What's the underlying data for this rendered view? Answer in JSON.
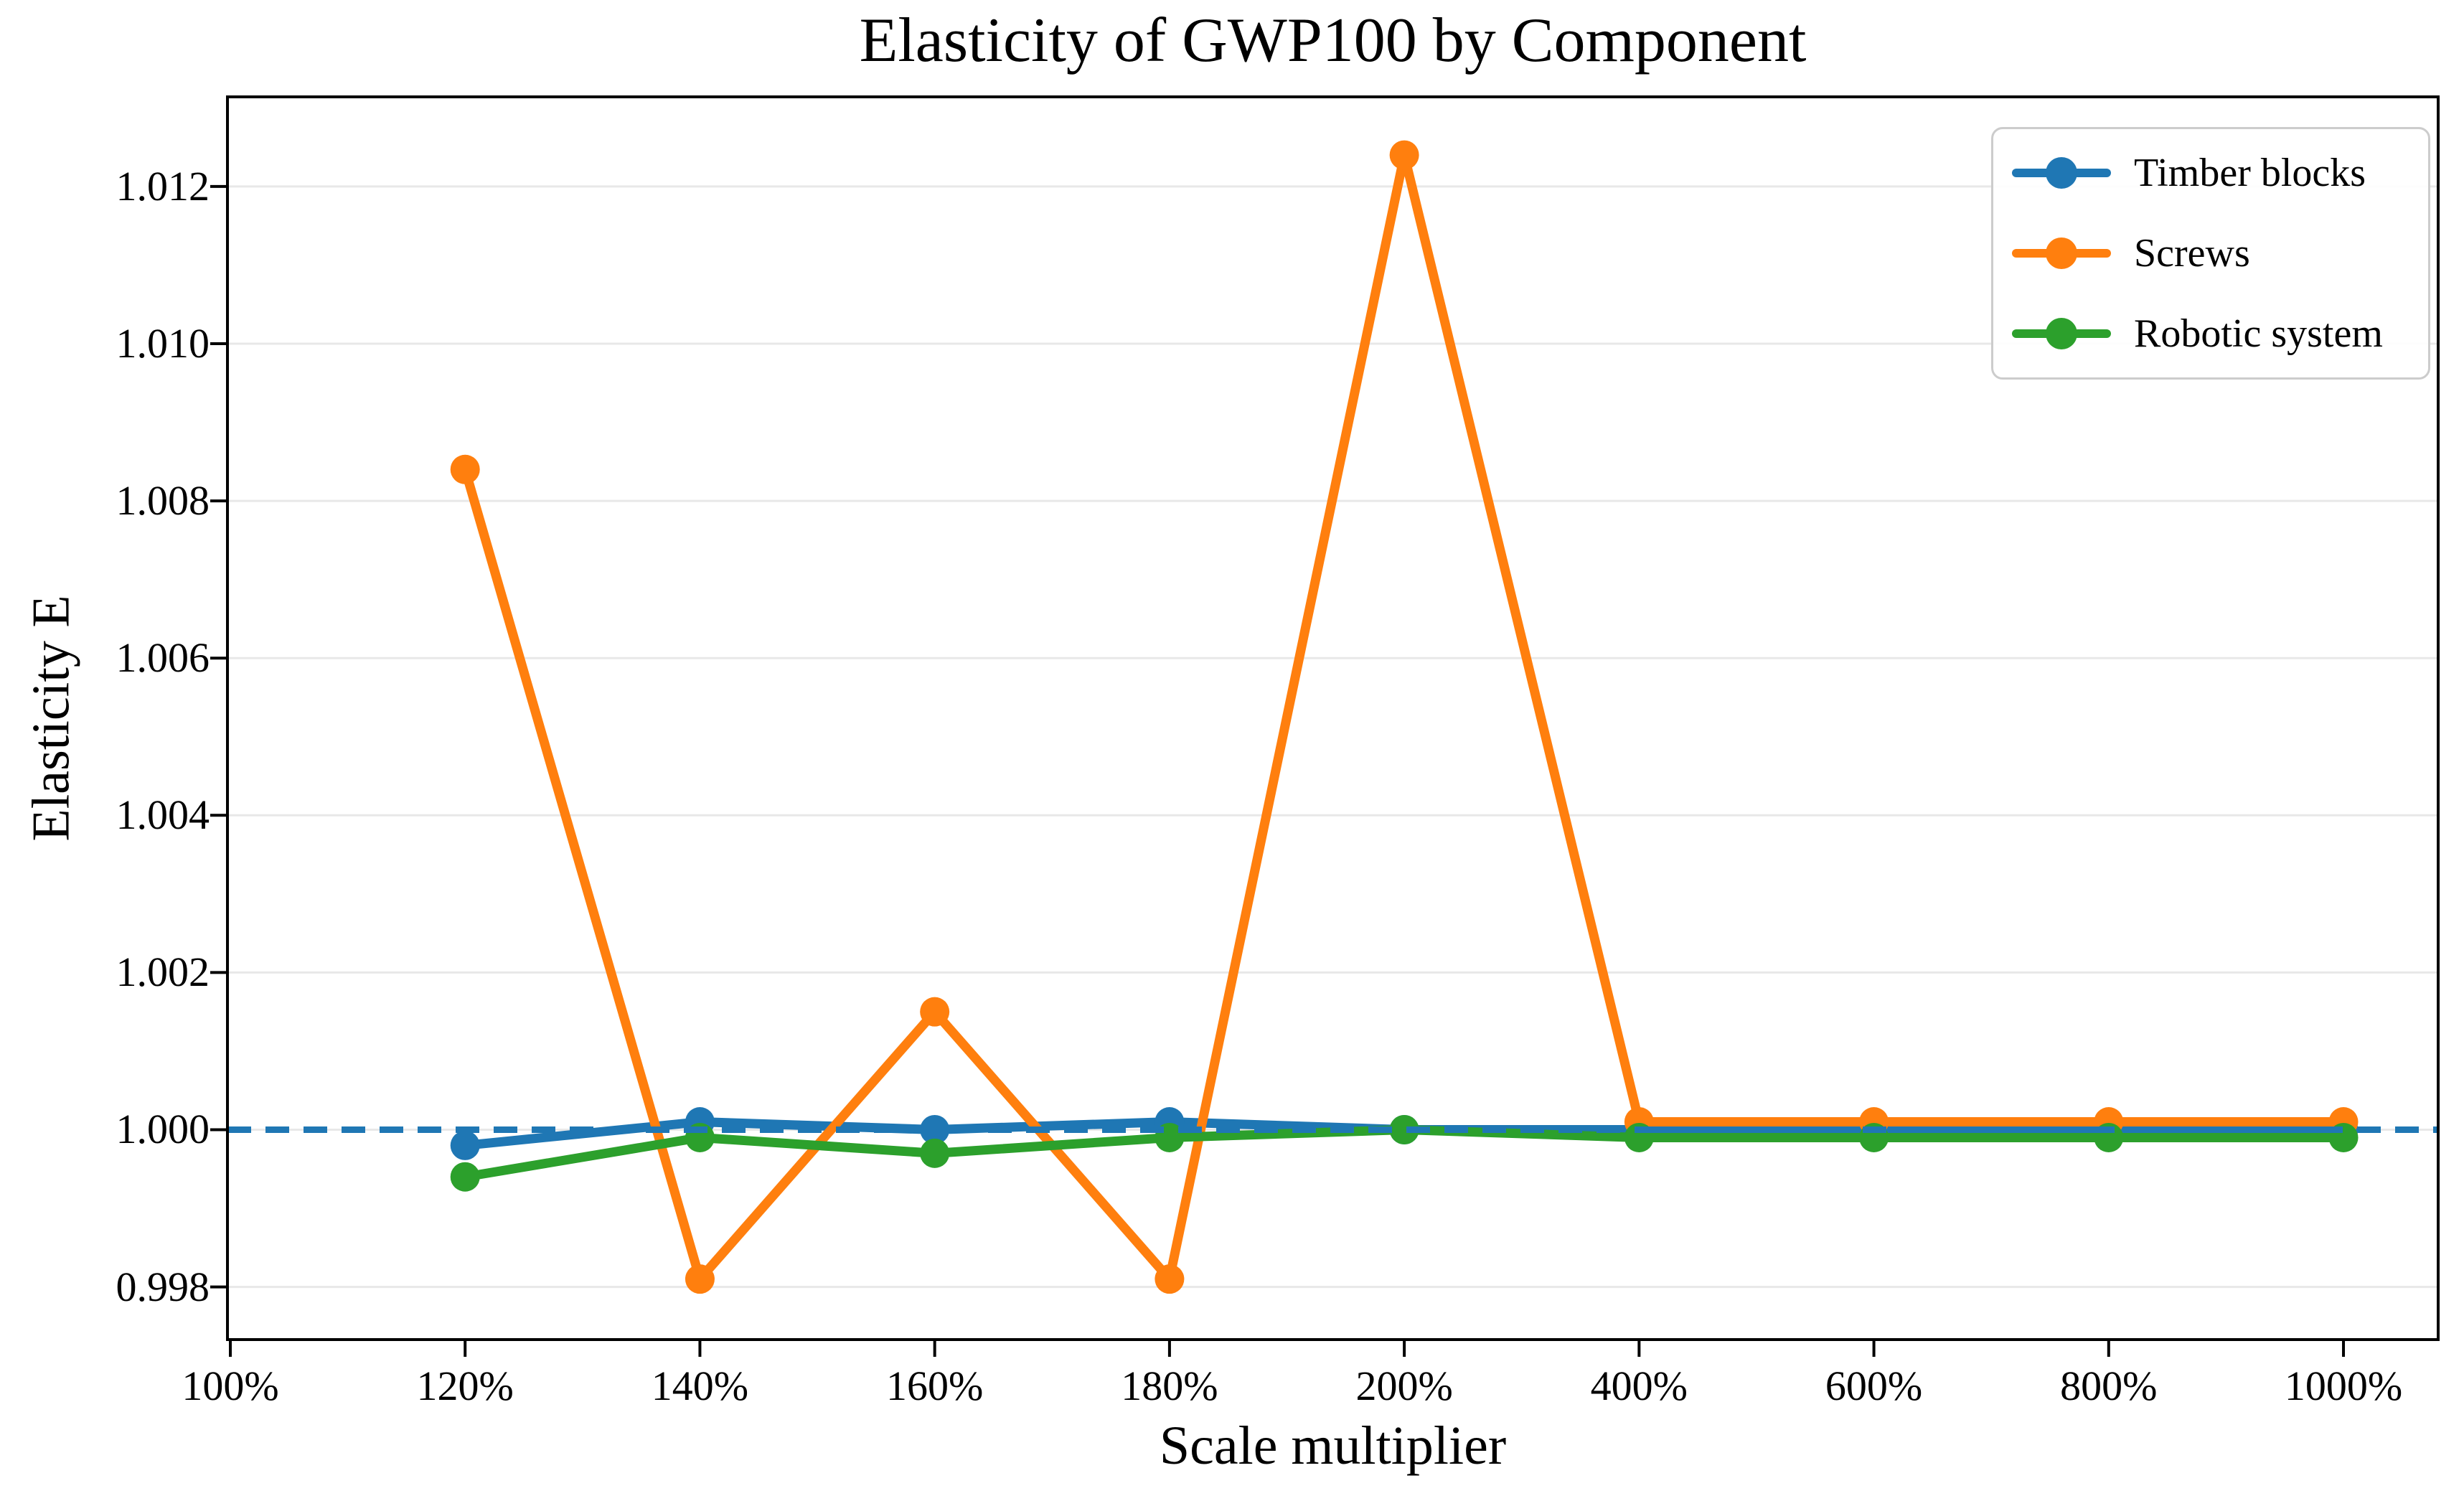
{
  "chart_data": {
    "type": "line",
    "title": "Elasticity of GWP100 by Component",
    "xlabel": "Scale multiplier",
    "ylabel": "Elasticity E",
    "categories": [
      "100%",
      "120%",
      "140%",
      "160%",
      "180%",
      "200%",
      "400%",
      "600%",
      "800%",
      "1000%"
    ],
    "series": [
      {
        "name": "Timber blocks",
        "color": "#1f77b4",
        "values": [
          null,
          0.9998,
          1.0001,
          1.0,
          1.0001,
          1.0,
          1.0,
          1.0,
          1.0,
          1.0
        ]
      },
      {
        "name": "Screws",
        "color": "#ff7f0e",
        "values": [
          null,
          1.0084,
          0.9981,
          1.0015,
          0.9981,
          1.0124,
          1.0001,
          1.0001,
          1.0001,
          1.0001
        ]
      },
      {
        "name": "Robotic system",
        "color": "#2ca02c",
        "values": [
          null,
          0.9994,
          0.9999,
          0.9997,
          0.9999,
          1.0,
          0.9999,
          0.9999,
          0.9999,
          0.9999
        ]
      }
    ],
    "reference_line": {
      "value": 1.0,
      "style": "dashed",
      "color": "#1f77b4"
    },
    "yticks": [
      0.998,
      1.0,
      1.002,
      1.004,
      1.006,
      1.008,
      1.01,
      1.012
    ],
    "ytick_labels": [
      "0.998",
      "1.000",
      "1.002",
      "1.004",
      "1.006",
      "1.008",
      "1.010",
      "1.012"
    ],
    "ylim": [
      0.99733,
      1.01314
    ],
    "xlim_index": [
      -0.0122,
      9.4033
    ],
    "grid": {
      "horizontal": true,
      "vertical": false,
      "color": "#e8e8e8"
    },
    "legend": {
      "position": "upper right"
    },
    "frame_color": "#000000"
  }
}
